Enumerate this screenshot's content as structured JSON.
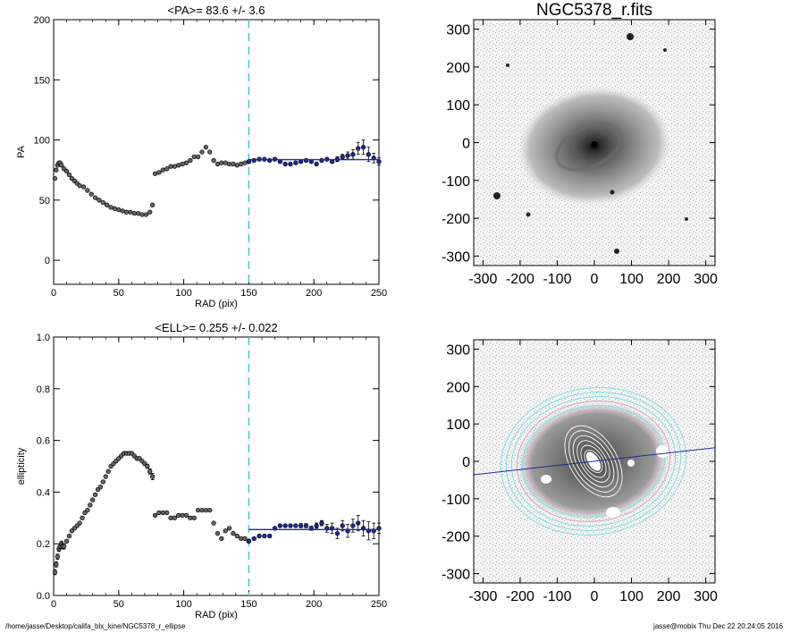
{
  "chart_data": [
    {
      "type": "scatter",
      "title": "<PA>=  83.6 +/-   3.6",
      "xlabel": "RAD (pix)",
      "ylabel": "PA",
      "xlim": [
        0,
        250
      ],
      "ylim": [
        -20,
        200
      ],
      "xticks": [
        0,
        50,
        100,
        150,
        200,
        250
      ],
      "yticks": [
        0,
        50,
        100,
        150,
        200
      ],
      "vline_x": 150,
      "fit_line": {
        "x": [
          150,
          250
        ],
        "y": [
          83.6,
          83.6
        ]
      },
      "series": [
        {
          "role": "inner",
          "x": [
            1,
            2,
            3,
            4,
            5,
            6,
            8,
            10,
            12,
            14,
            16,
            18,
            20,
            23,
            26,
            29,
            32,
            35,
            38,
            41,
            44,
            47,
            50,
            53,
            56,
            59,
            62,
            65,
            68,
            71,
            74,
            76
          ],
          "y": [
            68,
            75,
            79,
            81,
            81,
            79,
            76,
            74,
            71,
            68,
            66,
            64,
            62,
            61,
            58,
            55,
            52,
            50,
            48,
            46,
            44,
            43,
            42,
            41,
            40,
            40,
            39,
            39,
            38,
            38,
            40,
            46
          ]
        },
        {
          "role": "middle",
          "x": [
            78,
            81,
            84,
            87,
            90,
            93,
            96,
            99,
            102,
            105,
            108,
            111,
            114,
            117,
            120,
            123,
            126,
            129,
            132,
            135,
            138,
            141,
            144,
            147,
            150
          ],
          "y": [
            72,
            73,
            75,
            76,
            78,
            78,
            79,
            80,
            81,
            83,
            86,
            86,
            90,
            94,
            90,
            83,
            80,
            81,
            81,
            80,
            80,
            79,
            80,
            81,
            82
          ]
        },
        {
          "role": "fit-range",
          "x": [
            150,
            154,
            158,
            162,
            166,
            170,
            174,
            178,
            182,
            186,
            190,
            194,
            198,
            202,
            206,
            210,
            214,
            218,
            222,
            226,
            230,
            234,
            238,
            242,
            246,
            250
          ],
          "y": [
            82,
            83,
            84,
            84,
            83,
            84,
            82,
            80,
            80,
            81,
            82,
            83,
            82,
            80,
            83,
            84,
            82,
            84,
            86,
            87,
            88,
            93,
            94,
            88,
            85,
            82
          ],
          "err": [
            1,
            1,
            1,
            1,
            1,
            1,
            1,
            1,
            1,
            1,
            1,
            1,
            1,
            1,
            1,
            1,
            1,
            2,
            2,
            3,
            4,
            5,
            6,
            6,
            4,
            3
          ]
        }
      ]
    },
    {
      "type": "scatter",
      "title": "<ELL>= 0.255 +/-  0.022",
      "xlabel": "RAD (pix)",
      "ylabel": "ellipticity",
      "xlim": [
        0,
        250
      ],
      "ylim": [
        0,
        1
      ],
      "xticks": [
        0,
        50,
        100,
        150,
        200,
        250
      ],
      "yticks": [
        0.0,
        0.2,
        0.4,
        0.6,
        0.8,
        1.0
      ],
      "ytick_labels": [
        "0.0",
        "0.2",
        "0.4",
        "0.6",
        "0.8",
        "1.0"
      ],
      "vline_x": 150,
      "fit_line": {
        "x": [
          150,
          250
        ],
        "y": [
          0.255,
          0.255
        ]
      },
      "series": [
        {
          "role": "inner",
          "x": [
            1,
            2,
            3,
            4,
            5,
            6,
            7,
            8,
            10,
            12,
            14,
            16,
            18,
            20,
            22,
            24,
            26,
            28,
            30,
            32,
            34,
            36,
            38,
            40,
            42,
            44,
            46,
            48,
            50,
            52,
            54,
            56,
            58,
            60,
            62,
            64,
            66,
            68,
            70,
            72,
            74,
            76
          ],
          "y": [
            0.09,
            0.12,
            0.15,
            0.18,
            0.19,
            0.2,
            0.19,
            0.19,
            0.21,
            0.23,
            0.25,
            0.26,
            0.27,
            0.28,
            0.3,
            0.32,
            0.33,
            0.35,
            0.37,
            0.39,
            0.41,
            0.42,
            0.44,
            0.46,
            0.48,
            0.5,
            0.51,
            0.52,
            0.53,
            0.54,
            0.55,
            0.55,
            0.55,
            0.55,
            0.54,
            0.53,
            0.53,
            0.52,
            0.51,
            0.5,
            0.48,
            0.46
          ],
          "err": [
            0.01,
            0.01,
            0.01,
            0.01,
            0.01,
            0.01,
            0.01,
            0.01,
            0.005,
            0.005,
            0.005,
            0.005,
            0.005,
            0.005,
            0.005,
            0.005,
            0.005,
            0.005,
            0.005,
            0.005,
            0.005,
            0.005,
            0.005,
            0.005,
            0.005,
            0.005,
            0.005,
            0.005,
            0.005,
            0.005,
            0.005,
            0.005,
            0.005,
            0.005,
            0.005,
            0.005,
            0.005,
            0.005,
            0.006,
            0.008,
            0.01,
            0.012
          ]
        },
        {
          "role": "middle",
          "x": [
            78,
            81,
            84,
            87,
            90,
            93,
            96,
            99,
            102,
            105,
            108,
            111,
            114,
            117,
            120,
            123,
            126,
            129,
            132,
            135,
            138,
            141,
            144,
            147,
            150
          ],
          "y": [
            0.31,
            0.32,
            0.32,
            0.32,
            0.3,
            0.3,
            0.31,
            0.31,
            0.31,
            0.3,
            0.3,
            0.33,
            0.33,
            0.33,
            0.33,
            0.28,
            0.24,
            0.22,
            0.25,
            0.26,
            0.24,
            0.23,
            0.22,
            0.22,
            0.21
          ]
        },
        {
          "role": "fit-range",
          "x": [
            150,
            154,
            158,
            162,
            166,
            170,
            174,
            178,
            182,
            186,
            190,
            194,
            198,
            202,
            206,
            210,
            214,
            218,
            222,
            226,
            230,
            234,
            238,
            242,
            246,
            250
          ],
          "y": [
            0.21,
            0.22,
            0.23,
            0.23,
            0.23,
            0.26,
            0.27,
            0.27,
            0.27,
            0.27,
            0.27,
            0.27,
            0.26,
            0.27,
            0.28,
            0.26,
            0.26,
            0.24,
            0.27,
            0.25,
            0.27,
            0.28,
            0.26,
            0.25,
            0.25,
            0.26
          ],
          "err": [
            0.005,
            0.005,
            0.005,
            0.005,
            0.005,
            0.006,
            0.006,
            0.006,
            0.006,
            0.006,
            0.008,
            0.008,
            0.008,
            0.01,
            0.01,
            0.015,
            0.02,
            0.02,
            0.02,
            0.025,
            0.025,
            0.03,
            0.03,
            0.035,
            0.03,
            0.02
          ]
        }
      ]
    },
    {
      "type": "image",
      "title": "NGC5378_r.fits",
      "xlim": [
        -325,
        325
      ],
      "ylim": [
        -325,
        325
      ],
      "xticks": [
        -300,
        -200,
        -100,
        0,
        100,
        200,
        300
      ],
      "yticks": [
        -300,
        -200,
        -100,
        0,
        100,
        200,
        300
      ]
    },
    {
      "type": "image",
      "title": "",
      "xlim": [
        -325,
        325
      ],
      "ylim": [
        -325,
        325
      ],
      "xticks": [
        -300,
        -200,
        -100,
        0,
        100,
        200,
        300
      ],
      "yticks": [
        -300,
        -200,
        -100,
        0,
        100,
        200,
        300
      ],
      "pa_line_deg": 83.6
    }
  ],
  "colors": {
    "fit": "#1f2a9e",
    "vline": "#4cc8c8",
    "contour_light": "#7fe0e8",
    "contour_pink": "#d6a0c0",
    "inner_contour": "#ffffff"
  },
  "footer": {
    "left": "/home/jasse/Desktop/califa_blx_kine/NGC5378_r_ellipse",
    "right": "jasse@mobix  Thu Dec 22 20:24:05 2016"
  }
}
